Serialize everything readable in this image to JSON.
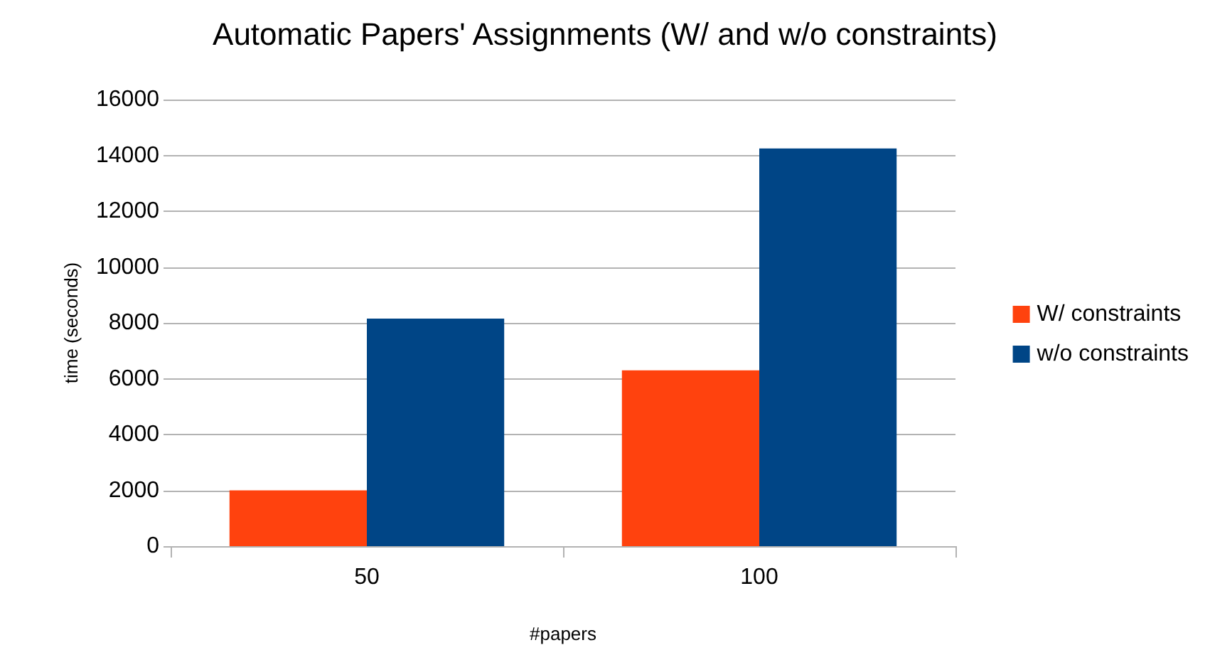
{
  "chart_data": {
    "type": "bar",
    "title": "Automatic Papers' Assignments (W/ and w/o constraints)",
    "xlabel": "#papers",
    "ylabel": "time (seconds)",
    "categories": [
      "50",
      "100"
    ],
    "series": [
      {
        "name": "W/ constraints",
        "color": "#ff420e",
        "values": [
          2000,
          6300
        ]
      },
      {
        "name": "w/o constraints",
        "color": "#004586",
        "values": [
          8150,
          14250
        ]
      }
    ],
    "ylim": [
      0,
      16000
    ],
    "yticks": [
      0,
      2000,
      4000,
      6000,
      8000,
      10000,
      12000,
      14000,
      16000
    ],
    "grid": "y",
    "legend": "right"
  }
}
